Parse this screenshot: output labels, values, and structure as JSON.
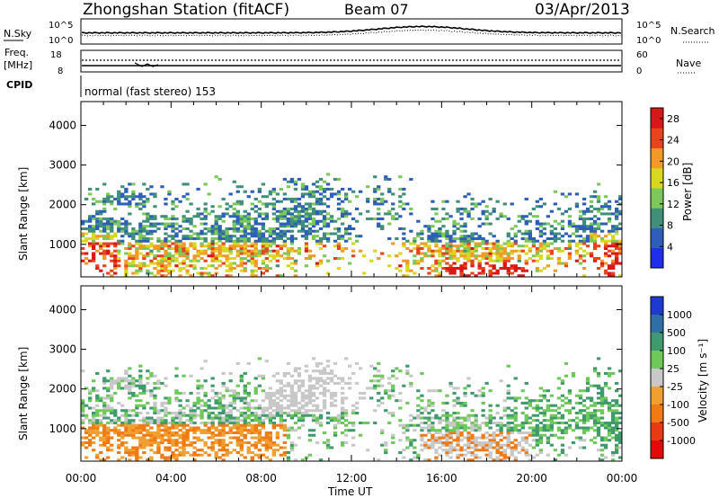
{
  "header": {
    "title": "Zhongshan Station (fitACF)",
    "beam": "Beam 07",
    "date": "03/Apr/2013"
  },
  "noise_panel": {
    "left_label": "N.Sky",
    "right_label": "N.Search",
    "left_ticks": [
      "10^5",
      "10^0"
    ],
    "right_ticks": [
      "10^5",
      "10^0"
    ]
  },
  "freq_panel": {
    "left_label_line1": "Freq.",
    "left_label_line2": "[MHz]",
    "right_label": "Nave",
    "left_ticks": [
      "18",
      "8"
    ],
    "right_ticks": [
      "60",
      "0"
    ]
  },
  "cpid": {
    "label": "CPID",
    "value": "normal (fast stereo) 153"
  },
  "chart_data": [
    {
      "type": "heatmap",
      "ylabel": "Slant Range [km]",
      "xlabel": "",
      "y_ticks": [
        1000,
        2000,
        3000,
        4000
      ],
      "ylim": [
        180,
        4600
      ],
      "x_tick_labels": [
        "00:00",
        "04:00",
        "08:00",
        "12:00",
        "16:00",
        "20:00",
        "00:00"
      ],
      "xlim_hours": [
        0,
        24
      ],
      "colorbar_label": "Power [dB]",
      "colorbar_ticks": [
        4,
        8,
        12,
        16,
        20,
        24,
        28
      ],
      "colorbar_range": [
        0,
        30
      ],
      "colorbar_colors": [
        "#1f2ee8",
        "#2d5fb8",
        "#3f8f7a",
        "#7cc85a",
        "#d8d820",
        "#f29a28",
        "#e8441e",
        "#d81818"
      ],
      "legend_position": "right"
    },
    {
      "type": "heatmap",
      "ylabel": "Slant Range [km]",
      "xlabel": "Time UT",
      "y_ticks": [
        1000,
        2000,
        3000,
        4000
      ],
      "ylim": [
        180,
        4600
      ],
      "x_tick_labels": [
        "00:00",
        "04:00",
        "08:00",
        "12:00",
        "16:00",
        "20:00",
        "00:00"
      ],
      "xlim_hours": [
        0,
        24
      ],
      "colorbar_label": "Velocity [m s⁻¹]",
      "colorbar_ticks": [
        "1000",
        "500",
        "100",
        "25",
        "-25",
        "-100",
        "-500",
        "-1000"
      ],
      "colorbar_colors": [
        "#1f3ad0",
        "#2f6fa6",
        "#3f9a6e",
        "#6fc85a",
        "#c8c8c8",
        "#f0a030",
        "#f07a14",
        "#e83a14",
        "#e00a0a"
      ],
      "legend_position": "right"
    }
  ]
}
